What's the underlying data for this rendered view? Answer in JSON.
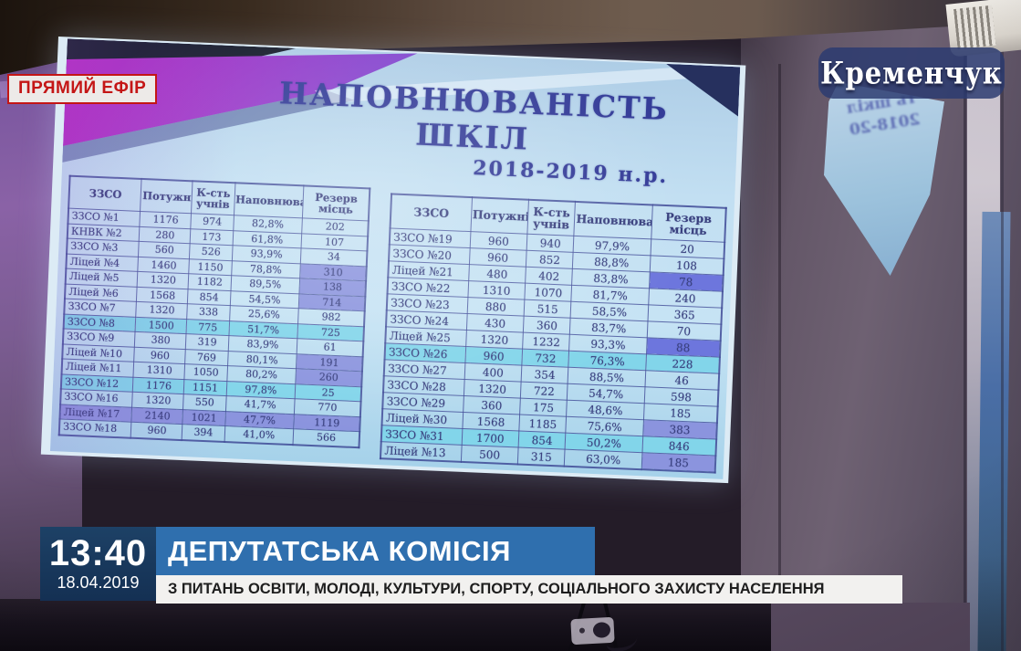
{
  "broadcast": {
    "live_badge": "ПРЯМИЙ ЕФІР",
    "channel_logo": "Кременчук",
    "time": "13:40",
    "date": "18.04.2019",
    "title": "ДЕПУТАТСЬКА КОМІСІЯ",
    "subtitle": "З ПИТАНЬ ОСВІТИ, МОЛОДІ, КУЛЬТУРИ, СПОРТУ, СОЦІАЛЬНОГО ЗАХИСТУ НАСЕЛЕННЯ"
  },
  "room": {
    "reflection_lines": [
      "ть шкіл",
      "2018-20"
    ]
  },
  "slide": {
    "title": "НАПОВНЮВАНІСТЬ ШКІЛ",
    "subtitle": "2018-2019 н.р.",
    "columns": [
      "ЗЗСО",
      "Потужність",
      "К-сть учнів",
      "Наповнюваність",
      "Резерв місць"
    ],
    "left_table": {
      "rows": [
        {
          "school": "ЗЗСО №1",
          "capacity": "1176",
          "students": "974",
          "occupancy": "82,8%",
          "reserve": "202",
          "row_highlight": "none",
          "reserve_highlight": "none"
        },
        {
          "school": "КНВК №2",
          "capacity": "280",
          "students": "173",
          "occupancy": "61,8%",
          "reserve": "107",
          "row_highlight": "none",
          "reserve_highlight": "none"
        },
        {
          "school": "ЗЗСО №3",
          "capacity": "560",
          "students": "526",
          "occupancy": "93,9%",
          "reserve": "34",
          "row_highlight": "none",
          "reserve_highlight": "none"
        },
        {
          "school": "Ліцей №4",
          "capacity": "1460",
          "students": "1150",
          "occupancy": "78,8%",
          "reserve": "310",
          "row_highlight": "none",
          "reserve_highlight": "violet"
        },
        {
          "school": "Ліцей №5",
          "capacity": "1320",
          "students": "1182",
          "occupancy": "89,5%",
          "reserve": "138",
          "row_highlight": "none",
          "reserve_highlight": "violet"
        },
        {
          "school": "Ліцей №6",
          "capacity": "1568",
          "students": "854",
          "occupancy": "54,5%",
          "reserve": "714",
          "row_highlight": "none",
          "reserve_highlight": "violet"
        },
        {
          "school": "ЗЗСО №7",
          "capacity": "1320",
          "students": "338",
          "occupancy": "25,6%",
          "reserve": "982",
          "row_highlight": "none",
          "reserve_highlight": "none"
        },
        {
          "school": "ЗЗСО №8",
          "capacity": "1500",
          "students": "775",
          "occupancy": "51,7%",
          "reserve": "725",
          "row_highlight": "cyan",
          "reserve_highlight": "cyan"
        },
        {
          "school": "ЗЗСО №9",
          "capacity": "380",
          "students": "319",
          "occupancy": "83,9%",
          "reserve": "61",
          "row_highlight": "none",
          "reserve_highlight": "none"
        },
        {
          "school": "Ліцей №10",
          "capacity": "960",
          "students": "769",
          "occupancy": "80,1%",
          "reserve": "191",
          "row_highlight": "none",
          "reserve_highlight": "violet"
        },
        {
          "school": "Ліцей №11",
          "capacity": "1310",
          "students": "1050",
          "occupancy": "80,2%",
          "reserve": "260",
          "row_highlight": "none",
          "reserve_highlight": "violet"
        },
        {
          "school": "ЗЗСО №12",
          "capacity": "1176",
          "students": "1151",
          "occupancy": "97,8%",
          "reserve": "25",
          "row_highlight": "cyan",
          "reserve_highlight": "cyan"
        },
        {
          "school": "ЗЗСО №16",
          "capacity": "1320",
          "students": "550",
          "occupancy": "41,7%",
          "reserve": "770",
          "row_highlight": "none",
          "reserve_highlight": "none"
        },
        {
          "school": "Ліцей №17",
          "capacity": "2140",
          "students": "1021",
          "occupancy": "47,7%",
          "reserve": "1119",
          "row_highlight": "violet",
          "reserve_highlight": "violet"
        },
        {
          "school": "ЗЗСО №18",
          "capacity": "960",
          "students": "394",
          "occupancy": "41,0%",
          "reserve": "566",
          "row_highlight": "none",
          "reserve_highlight": "none"
        }
      ]
    },
    "right_table": {
      "rows": [
        {
          "school": "ЗЗСО №19",
          "capacity": "960",
          "students": "940",
          "occupancy": "97,9%",
          "reserve": "20",
          "row_highlight": "none",
          "reserve_highlight": "none"
        },
        {
          "school": "ЗЗСО №20",
          "capacity": "960",
          "students": "852",
          "occupancy": "88,8%",
          "reserve": "108",
          "row_highlight": "none",
          "reserve_highlight": "none"
        },
        {
          "school": "Ліцей №21",
          "capacity": "480",
          "students": "402",
          "occupancy": "83,8%",
          "reserve": "78",
          "row_highlight": "none",
          "reserve_highlight": "deep"
        },
        {
          "school": "ЗЗСО №22",
          "capacity": "1310",
          "students": "1070",
          "occupancy": "81,7%",
          "reserve": "240",
          "row_highlight": "none",
          "reserve_highlight": "none"
        },
        {
          "school": "ЗЗСО №23",
          "capacity": "880",
          "students": "515",
          "occupancy": "58,5%",
          "reserve": "365",
          "row_highlight": "none",
          "reserve_highlight": "none"
        },
        {
          "school": "ЗЗСО №24",
          "capacity": "430",
          "students": "360",
          "occupancy": "83,7%",
          "reserve": "70",
          "row_highlight": "none",
          "reserve_highlight": "none"
        },
        {
          "school": "Ліцей №25",
          "capacity": "1320",
          "students": "1232",
          "occupancy": "93,3%",
          "reserve": "88",
          "row_highlight": "none",
          "reserve_highlight": "deep"
        },
        {
          "school": "ЗЗСО №26",
          "capacity": "960",
          "students": "732",
          "occupancy": "76,3%",
          "reserve": "228",
          "row_highlight": "cyan",
          "reserve_highlight": "cyan"
        },
        {
          "school": "ЗЗСО №27",
          "capacity": "400",
          "students": "354",
          "occupancy": "88,5%",
          "reserve": "46",
          "row_highlight": "none",
          "reserve_highlight": "none"
        },
        {
          "school": "ЗЗСО №28",
          "capacity": "1320",
          "students": "722",
          "occupancy": "54,7%",
          "reserve": "598",
          "row_highlight": "none",
          "reserve_highlight": "none"
        },
        {
          "school": "ЗЗСО №29",
          "capacity": "360",
          "students": "175",
          "occupancy": "48,6%",
          "reserve": "185",
          "row_highlight": "none",
          "reserve_highlight": "none"
        },
        {
          "school": "Ліцей №30",
          "capacity": "1568",
          "students": "1185",
          "occupancy": "75,6%",
          "reserve": "383",
          "row_highlight": "none",
          "reserve_highlight": "violet"
        },
        {
          "school": "ЗЗСО №31",
          "capacity": "1700",
          "students": "854",
          "occupancy": "50,2%",
          "reserve": "846",
          "row_highlight": "cyan",
          "reserve_highlight": "cyan"
        },
        {
          "school": "Ліцей №13",
          "capacity": "500",
          "students": "315",
          "occupancy": "63,0%",
          "reserve": "185",
          "row_highlight": "none",
          "reserve_highlight": "violet"
        }
      ]
    }
  },
  "colors": {
    "title_blue": "#343c98",
    "table_text": "#39407e",
    "highlight_violet": "#8b94de",
    "highlight_cyan": "#82d5ea",
    "highlight_deep": "#6d76dd",
    "live_red": "#c41616",
    "banner_navy": "#143053",
    "banner_blue": "#2f6fae",
    "banner_white": "#f2f1ef",
    "logo_navy": "#2b3a70"
  }
}
